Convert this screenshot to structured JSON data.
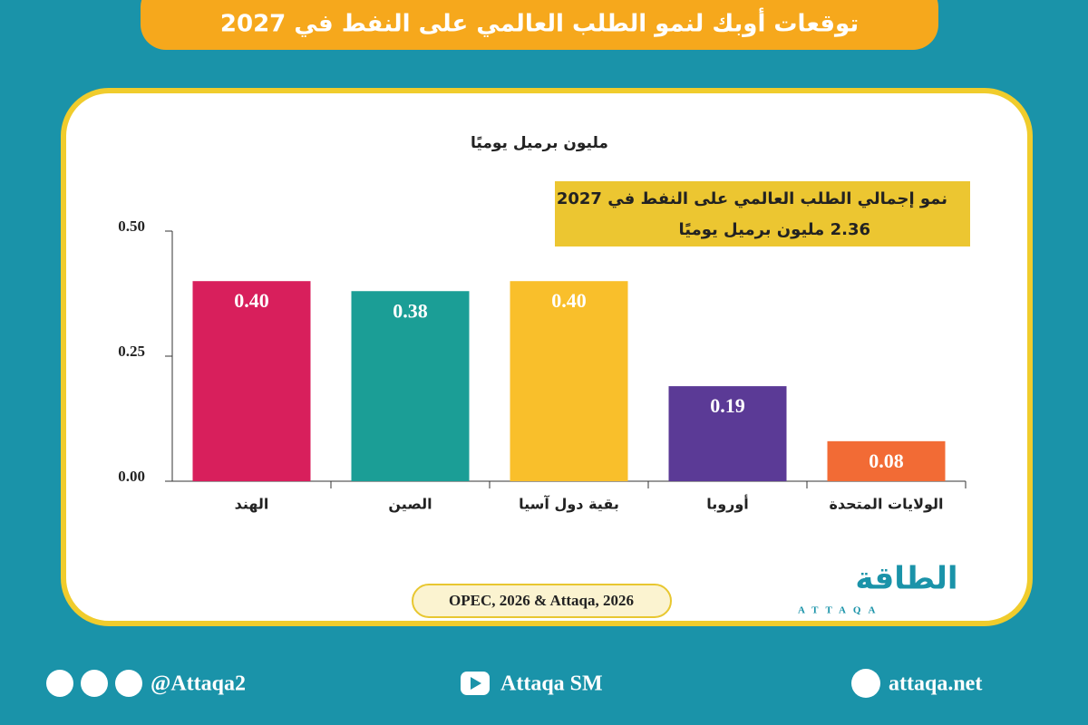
{
  "chart_data": {
    "type": "bar",
    "title": "توقعات أوبك لنمو الطلب العالمي على النفط في 2027",
    "y_label": "مليون برميل يوميًا",
    "annotation": [
      "نمو إجمالي الطلب العالمي على النفط في 2027",
      "2.36  مليون برميل يوميًا"
    ],
    "categories": [
      "الهند",
      "الصين",
      "بقية دول آسيا",
      "أوروبا",
      "الولايات المتحدة"
    ],
    "values": [
      0.4,
      0.38,
      0.4,
      0.19,
      0.08
    ],
    "value_labels": [
      "0.40",
      "0.38",
      "0.40",
      "0.19",
      "0.08"
    ],
    "colors": [
      "#d81f5c",
      "#1b9e96",
      "#f9bf2b",
      "#5b3a96",
      "#f26b35"
    ],
    "ylim": [
      0,
      0.5
    ],
    "yticks": [
      {
        "value": 0,
        "label": "0.00"
      },
      {
        "value": 0.25,
        "label": "0.25"
      },
      {
        "value": 0.5,
        "label": "0.50"
      }
    ],
    "source": "OPEC, 2026 & Attaqa, 2026"
  },
  "logo": {
    "name": "الطاقة",
    "latin": "ATTAQA"
  },
  "footer": {
    "social": "@Attaqa2",
    "youtube": "Attaqa SM",
    "website": "attaqa.net"
  }
}
